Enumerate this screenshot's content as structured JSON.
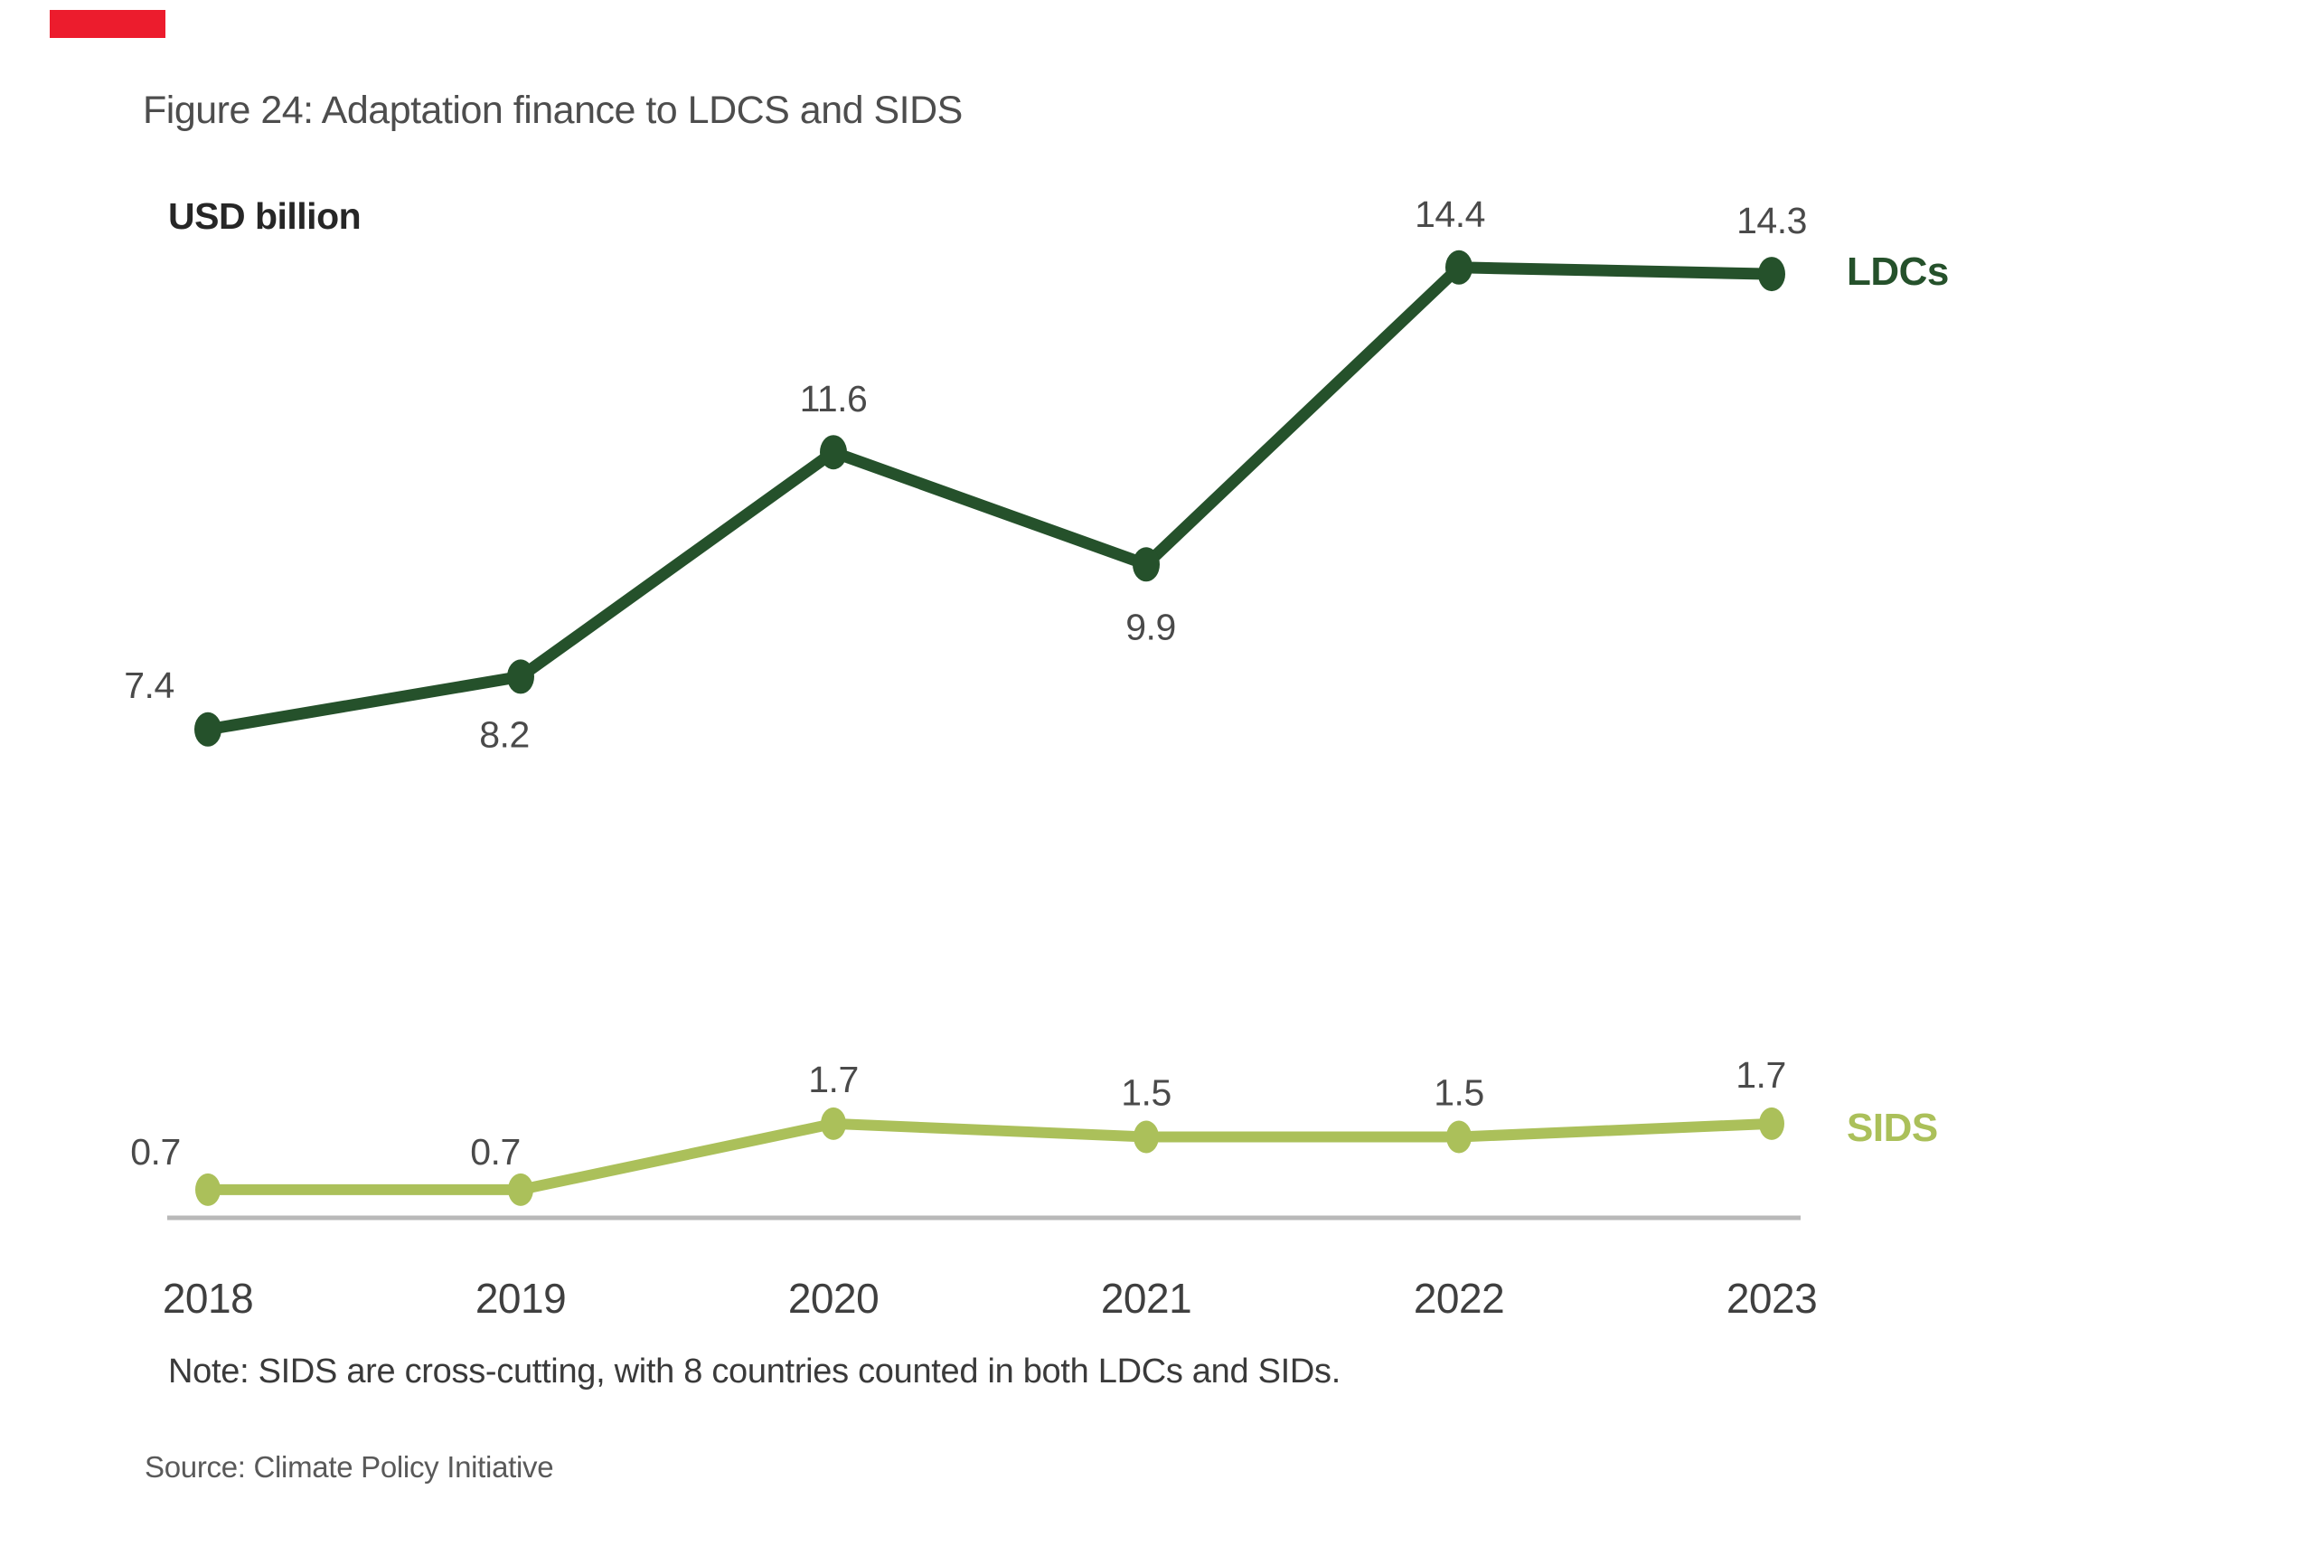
{
  "figure": {
    "title": "Figure 24: Adaptation finance to LDCS and SIDS",
    "unit_label": "USD billion",
    "note": "Note: SIDS are cross-cutting, with 8 countries counted in both LDCs and SIDs.",
    "source": "Source: Climate Policy Initiative"
  },
  "colors": {
    "ldcs_green": "#25512B",
    "sids_green": "#ABC05A",
    "axis_gray": "#B9B9B9",
    "title_text": "#4D4D4D",
    "label_text": "#4A4A4A",
    "accent_red": "#EC1C2D"
  },
  "chart_data": {
    "type": "line",
    "categories": [
      "2018",
      "2019",
      "2020",
      "2021",
      "2022",
      "2023"
    ],
    "series": [
      {
        "name": "LDCs",
        "color": "#25512B",
        "values": [
          7.4,
          8.2,
          11.6,
          9.9,
          14.4,
          14.3
        ]
      },
      {
        "name": "SIDS",
        "color": "#ABC05A",
        "values": [
          0.7,
          0.7,
          1.7,
          1.5,
          1.5,
          1.7
        ]
      }
    ],
    "title": "Figure 24: Adaptation finance to LDCS and SIDS",
    "xlabel": "",
    "ylabel": "USD billion",
    "ylim": [
      0,
      16
    ],
    "grid": false,
    "legend_position": "right of line ends",
    "data_labels": true,
    "note": "Note: SIDS are cross-cutting, with 8 countries counted in both LDCs and SIDs.",
    "source": "Source: Climate Policy Initiative"
  }
}
